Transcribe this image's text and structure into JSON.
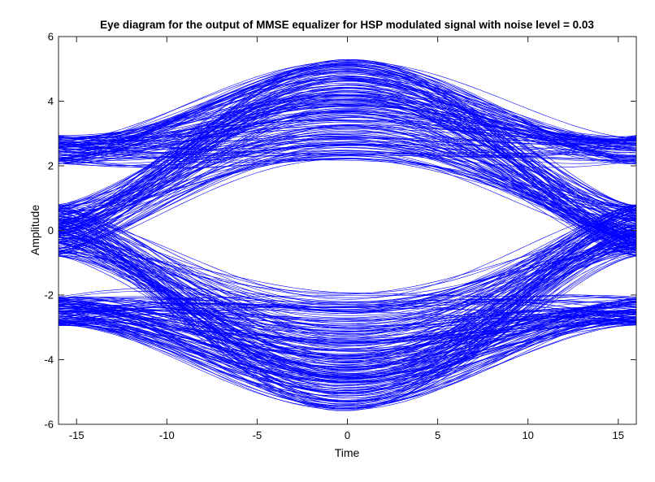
{
  "chart_data": {
    "type": "line",
    "title": "Eye diagram for the output of MMSE equalizer for HSP modulated signal with noise level = 0.03",
    "xlabel": "Time",
    "ylabel": "Amplitude",
    "xlim": [
      -16,
      16
    ],
    "ylim": [
      -6,
      6
    ],
    "xticks": [
      -15,
      -10,
      -5,
      0,
      5,
      10,
      15
    ],
    "yticks": [
      -6,
      -4,
      -2,
      0,
      2,
      4,
      6
    ],
    "xtick_labels": [
      "-15",
      "-10",
      "-5",
      "0",
      "5",
      "10",
      "15"
    ],
    "ytick_labels": [
      "-6",
      "-4",
      "-2",
      "0",
      "2",
      "4",
      "6"
    ],
    "grid": false,
    "line_color": "#0000ff",
    "trace_count": 400,
    "symbol_levels": [
      2.5,
      -2.5
    ],
    "eye_peak_range_upper": [
      2.1,
      5.3
    ],
    "eye_peak_range_lower": [
      -5.6,
      -1.9
    ],
    "crossing_amplitude_range": [
      -0.8,
      0.8
    ],
    "noise_level": 0.03
  }
}
